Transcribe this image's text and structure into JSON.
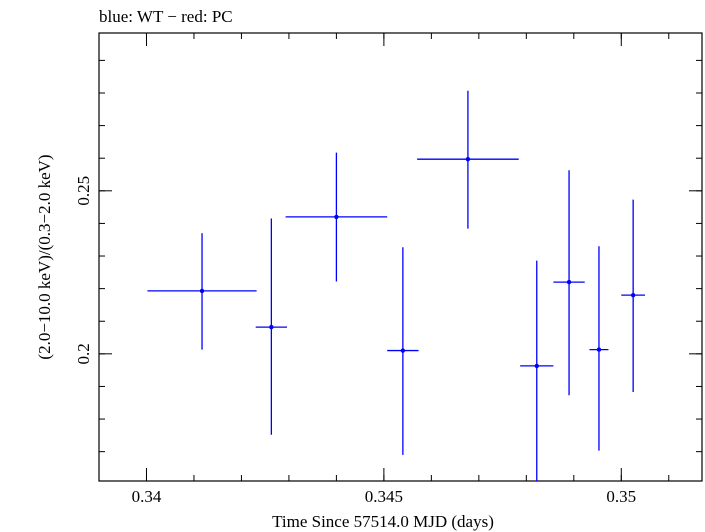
{
  "chart_data": {
    "type": "scatter",
    "title": "blue: WT − red: PC",
    "xlabel": "Time Since 57514.0 MJD (days)",
    "ylabel": "(2.0−10.0 keV)/(0.3−2.0 keV)",
    "xlim": [
      0.339,
      0.3517
    ],
    "ylim": [
      0.161,
      0.2984
    ],
    "x_ticks": [
      {
        "value": 0.34,
        "label": "0.34"
      },
      {
        "value": 0.345,
        "label": "0.345"
      },
      {
        "value": 0.35,
        "label": "0.35"
      }
    ],
    "y_ticks": [
      {
        "value": 0.2,
        "label": "0.2"
      },
      {
        "value": 0.25,
        "label": "0.25"
      }
    ],
    "x_minor_step": 0.001,
    "y_minor_step": 0.01,
    "grid": false,
    "series": [
      {
        "color": "#0000ff",
        "points": [
          {
            "x": 0.34117,
            "y": 0.2193,
            "xerr": 0.00115,
            "yerr_low": 0.018,
            "yerr_high": 0.0177
          },
          {
            "x": 0.34263,
            "y": 0.2082,
            "xerr": 0.00033,
            "yerr_low": 0.033,
            "yerr_high": 0.0333
          },
          {
            "x": 0.344,
            "y": 0.242,
            "xerr": 0.00107,
            "yerr_low": 0.0198,
            "yerr_high": 0.0197
          },
          {
            "x": 0.3454,
            "y": 0.201,
            "xerr": 0.00033,
            "yerr_low": 0.032,
            "yerr_high": 0.0317
          },
          {
            "x": 0.34677,
            "y": 0.2597,
            "xerr": 0.00107,
            "yerr_low": 0.0213,
            "yerr_high": 0.021
          },
          {
            "x": 0.34822,
            "y": 0.1963,
            "xerr": 0.00035,
            "yerr_low": 0.0353,
            "yerr_high": 0.0323
          },
          {
            "x": 0.3489,
            "y": 0.222,
            "xerr": 0.00033,
            "yerr_low": 0.0347,
            "yerr_high": 0.0343
          },
          {
            "x": 0.34953,
            "y": 0.2013,
            "xerr": 0.0002,
            "yerr_low": 0.031,
            "yerr_high": 0.0317
          },
          {
            "x": 0.35025,
            "y": 0.218,
            "xerr": 0.00025,
            "yerr_low": 0.0297,
            "yerr_high": 0.0293
          }
        ]
      }
    ]
  }
}
